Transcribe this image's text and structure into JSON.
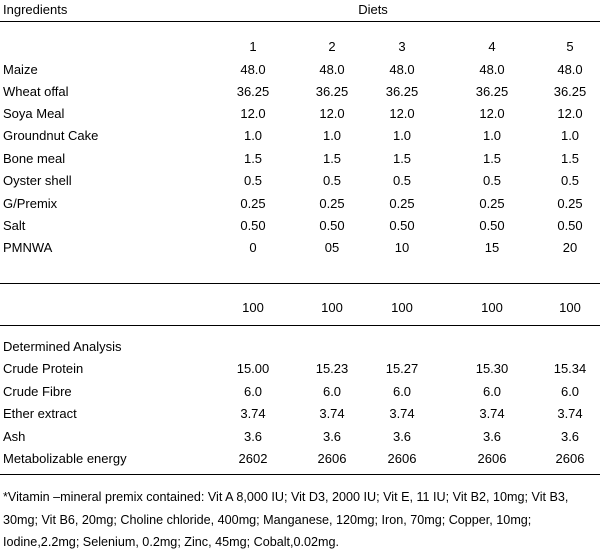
{
  "header": {
    "ingredients_label": "Ingredients",
    "diets_label": "Diets"
  },
  "diet_numbers": [
    "1",
    "2",
    "3",
    "4",
    "5"
  ],
  "ingredients": [
    {
      "name": "Maize",
      "values": [
        "48.0",
        "48.0",
        "48.0",
        "48.0",
        "48.0"
      ]
    },
    {
      "name": "Wheat offal",
      "values": [
        "36.25",
        "36.25",
        "36.25",
        "36.25",
        "36.25"
      ]
    },
    {
      "name": "Soya Meal",
      "values": [
        "12.0",
        "12.0",
        "12.0",
        "12.0",
        "12.0"
      ]
    },
    {
      "name": "Groundnut Cake",
      "values": [
        "1.0",
        "1.0",
        "1.0",
        "1.0",
        "1.0"
      ]
    },
    {
      "name": "Bone meal",
      "values": [
        "1.5",
        "1.5",
        "1.5",
        "1.5",
        "1.5"
      ]
    },
    {
      "name": "Oyster shell",
      "values": [
        "0.5",
        "0.5",
        "0.5",
        "0.5",
        "0.5"
      ]
    },
    {
      "name": "G/Premix",
      "values": [
        "0.25",
        "0.25",
        "0.25",
        "0.25",
        "0.25"
      ]
    },
    {
      "name": "Salt",
      "values": [
        "0.50",
        "0.50",
        "0.50",
        "0.50",
        "0.50"
      ]
    },
    {
      "name": "PMNWA",
      "values": [
        "0",
        "05",
        "10",
        "15",
        "20"
      ]
    }
  ],
  "totals": [
    "100",
    "100",
    "100",
    "100",
    "100"
  ],
  "analysis": {
    "title": "Determined Analysis",
    "rows": [
      {
        "name": "Crude Protein",
        "values": [
          "15.00",
          "15.23",
          "15.27",
          "15.30",
          "15.34"
        ]
      },
      {
        "name": "Crude Fibre",
        "values": [
          "6.0",
          "6.0",
          "6.0",
          "6.0",
          "6.0"
        ]
      },
      {
        "name": "Ether extract",
        "values": [
          "3.74",
          "3.74",
          "3.74",
          "3.74",
          "3.74"
        ]
      },
      {
        "name": "Ash",
        "values": [
          "3.6",
          "3.6",
          "3.6",
          "3.6",
          "3.6"
        ]
      },
      {
        "name": "Metabolizable energy",
        "values": [
          "2602",
          "2606",
          "2606",
          "2606",
          "2606"
        ]
      }
    ]
  },
  "footnote": "*Vitamin –mineral premix contained: Vit A 8,000 IU; Vit D3, 2000 IU; Vit E, 11 IU; Vit B2, 10mg; Vit B3, 30mg; Vit B6, 20mg; Choline chloride, 400mg; Manganese, 120mg; Iron, 70mg; Copper, 10mg; Iodine,2.2mg; Selenium, 0.2mg; Zinc, 45mg; Cobalt,0.02mg."
}
